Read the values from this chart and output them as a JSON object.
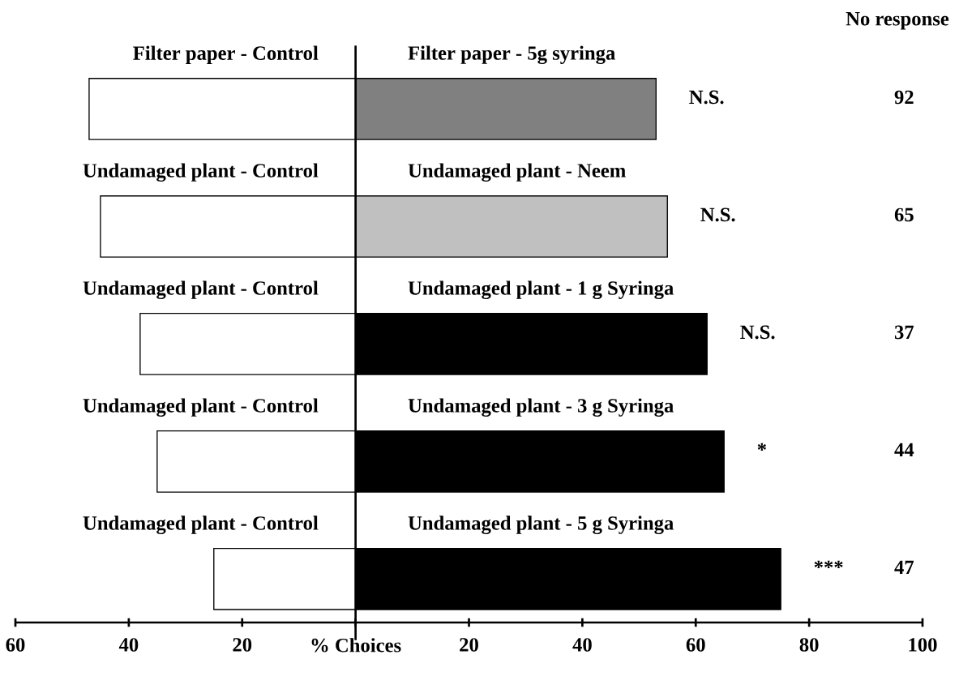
{
  "chart_data": {
    "type": "bar",
    "orientation": "horizontal",
    "categories": [
      "Filter paper - 5g syringa",
      "Undamaged plant - Neem",
      "Undamaged plant - 1 g Syringa",
      "Undamaged plant - 3 g Syringa",
      "Undamaged plant - 5 g Syringa"
    ],
    "series": [
      {
        "color": "#ffffff",
        "values": [
          -47,
          -45,
          -38,
          -35,
          -25
        ]
      },
      {
        "colors": [
          "#808080",
          "#c0c0c0",
          "#000000",
          "#000000",
          "#000000"
        ],
        "values": [
          53,
          55,
          62,
          65,
          75
        ]
      }
    ],
    "xlabel": "% Choices",
    "xlim": [
      -60,
      100
    ],
    "xticks": [
      {
        "value": -60,
        "label": "60"
      },
      {
        "value": -40,
        "label": "40"
      },
      {
        "value": -20,
        "label": "20"
      },
      {
        "value": 0,
        "label": null
      },
      20,
      40,
      60,
      80,
      100
    ],
    "stacked": true,
    "annotations": [
      "No response",
      "Filter paper - Control",
      "Undamaged plant - Control",
      "Undamaged plant - Control",
      "Undamaged plant - Control",
      "Undamaged plant - Control",
      "N.S.",
      "N.S.",
      "N.S.",
      "*",
      "***",
      "92",
      "65",
      "37",
      "44",
      "47"
    ]
  }
}
